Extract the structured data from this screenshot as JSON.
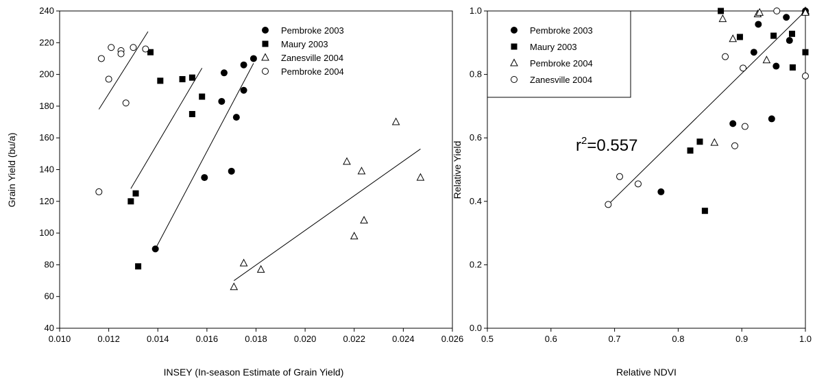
{
  "chart_data": [
    {
      "type": "scatter",
      "xlabel": "INSEY (In-season Estimate of Grain Yield)",
      "ylabel": "Grain Yield (bu/a)",
      "xlim": [
        0.01,
        0.026
      ],
      "ylim": [
        40,
        240
      ],
      "xticks": [
        "0.010",
        "0.012",
        "0.014",
        "0.016",
        "0.018",
        "0.020",
        "0.022",
        "0.024",
        "0.026"
      ],
      "yticks": [
        "40",
        "60",
        "80",
        "100",
        "120",
        "140",
        "160",
        "180",
        "200",
        "220",
        "240"
      ],
      "legend_position": "top-right",
      "series": [
        {
          "name": "Pembroke 2003",
          "marker": "filled-circle",
          "points": [
            [
              0.0139,
              90
            ],
            [
              0.0159,
              135
            ],
            [
              0.0166,
              183
            ],
            [
              0.0167,
              201
            ],
            [
              0.017,
              139
            ],
            [
              0.0172,
              173
            ],
            [
              0.0175,
              206
            ],
            [
              0.0175,
              190
            ],
            [
              0.0179,
              210
            ]
          ],
          "fit": [
            [
              0.0139,
              90
            ],
            [
              0.0179,
              207
            ]
          ]
        },
        {
          "name": "Maury 2003",
          "marker": "filled-square",
          "points": [
            [
              0.0129,
              120
            ],
            [
              0.0131,
              125
            ],
            [
              0.0132,
              79
            ],
            [
              0.0137,
              214
            ],
            [
              0.0141,
              196
            ],
            [
              0.015,
              197
            ],
            [
              0.0154,
              175
            ],
            [
              0.0154,
              198
            ],
            [
              0.0158,
              186
            ]
          ],
          "fit": [
            [
              0.0129,
              128
            ],
            [
              0.0158,
              204
            ]
          ]
        },
        {
          "name": "Zanesville 2004",
          "marker": "open-triangle",
          "points": [
            [
              0.0171,
              66
            ],
            [
              0.0175,
              81
            ],
            [
              0.0182,
              77
            ],
            [
              0.0217,
              145
            ],
            [
              0.022,
              98
            ],
            [
              0.0223,
              139
            ],
            [
              0.0224,
              108
            ],
            [
              0.0237,
              170
            ],
            [
              0.0247,
              135
            ]
          ],
          "fit": [
            [
              0.0171,
              70
            ],
            [
              0.0247,
              153
            ]
          ]
        },
        {
          "name": "Pembroke 2004",
          "marker": "open-circle",
          "points": [
            [
              0.0116,
              126
            ],
            [
              0.0117,
              210
            ],
            [
              0.012,
              197
            ],
            [
              0.0121,
              217
            ],
            [
              0.0125,
              215
            ],
            [
              0.0125,
              213
            ],
            [
              0.0127,
              182
            ],
            [
              0.013,
              217
            ],
            [
              0.0135,
              216
            ]
          ],
          "fit": [
            [
              0.0116,
              178
            ],
            [
              0.0136,
              227
            ]
          ]
        }
      ]
    },
    {
      "type": "scatter",
      "xlabel": "Relative NDVI",
      "ylabel": "Relative Yield",
      "xlim": [
        0.5,
        1.0
      ],
      "ylim": [
        0.0,
        1.0
      ],
      "xticks": [
        "0.5",
        "0.6",
        "0.7",
        "0.8",
        "0.9",
        "1.0"
      ],
      "yticks": [
        "0.0",
        "0.2",
        "0.4",
        "0.6",
        "0.8",
        "1.0"
      ],
      "legend_position": "top-left",
      "annotation": {
        "prefix": "r",
        "superscript": "2",
        "suffix": "=0.557"
      },
      "series": [
        {
          "name": "Pembroke 2003",
          "marker": "filled-circle",
          "points": [
            [
              0.773,
              0.43
            ],
            [
              0.886,
              0.645
            ],
            [
              0.919,
              0.87
            ],
            [
              0.926,
              0.958
            ],
            [
              0.947,
              0.66
            ],
            [
              0.954,
              0.826
            ],
            [
              0.97,
              0.98
            ],
            [
              0.975,
              0.907
            ],
            [
              1.0,
              1.0
            ]
          ]
        },
        {
          "name": "Maury 2003",
          "marker": "filled-square",
          "points": [
            [
              0.819,
              0.56
            ],
            [
              0.834,
              0.588
            ],
            [
              0.842,
              0.37
            ],
            [
              0.867,
              1.0
            ],
            [
              0.897,
              0.918
            ],
            [
              0.95,
              0.922
            ],
            [
              0.979,
              0.928
            ],
            [
              0.98,
              0.822
            ],
            [
              1.0,
              0.87
            ]
          ]
        },
        {
          "name": "Pembroke 2004",
          "marker": "open-triangle",
          "points": [
            [
              0.857,
              0.585
            ],
            [
              0.87,
              0.975
            ],
            [
              0.886,
              0.912
            ],
            [
              0.925,
              0.99
            ],
            [
              0.928,
              0.995
            ],
            [
              0.939,
              0.845
            ],
            [
              1.0,
              1.0
            ],
            [
              1.0,
              0.998
            ],
            [
              1.0,
              0.995
            ]
          ]
        },
        {
          "name": "Zanesville 2004",
          "marker": "open-circle",
          "points": [
            [
              0.69,
              0.39
            ],
            [
              0.708,
              0.478
            ],
            [
              0.737,
              0.455
            ],
            [
              0.874,
              0.856
            ],
            [
              0.889,
              0.575
            ],
            [
              0.902,
              0.82
            ],
            [
              0.905,
              0.636
            ],
            [
              0.955,
              1.0
            ],
            [
              1.0,
              0.795
            ]
          ]
        }
      ],
      "fit": [
        [
          0.69,
          0.39
        ],
        [
          1.0,
          1.0
        ]
      ]
    }
  ]
}
